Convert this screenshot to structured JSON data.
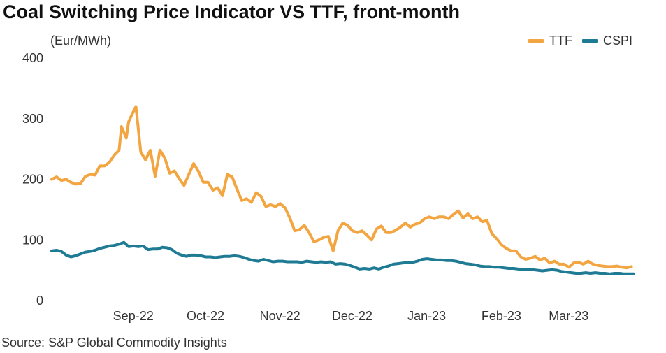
{
  "chart_data": {
    "type": "line",
    "title": "Coal Switching Price Indicator VS TTF, front-month",
    "ylabel": "(Eur/MWh)",
    "source": "Source: S&P Global Commodity Insights",
    "ylim": [
      0,
      400
    ],
    "yticks": [
      "400",
      "300",
      "200",
      "100",
      "0"
    ],
    "xlim": [
      "2022-08-01",
      "2023-03-31"
    ],
    "xticks": [
      {
        "date": "2022-09-01",
        "label": "Sep-22"
      },
      {
        "date": "2022-10-01",
        "label": "Oct-22"
      },
      {
        "date": "2022-11-01",
        "label": "Nov-22"
      },
      {
        "date": "2022-12-01",
        "label": "Dec-22"
      },
      {
        "date": "2023-01-01",
        "label": "Jan-23"
      },
      {
        "date": "2023-02-01",
        "label": "Feb-23"
      },
      {
        "date": "2023-03-01",
        "label": "Mar-23"
      }
    ],
    "grid": false,
    "legend_position": "top-right",
    "series": [
      {
        "name": "TTF",
        "color": "#F2A541",
        "points": [
          [
            "2022-08-01",
            200
          ],
          [
            "2022-08-03",
            204
          ],
          [
            "2022-08-05",
            198
          ],
          [
            "2022-08-07",
            200
          ],
          [
            "2022-08-09",
            195
          ],
          [
            "2022-08-11",
            192
          ],
          [
            "2022-08-13",
            193
          ],
          [
            "2022-08-15",
            205
          ],
          [
            "2022-08-17",
            208
          ],
          [
            "2022-08-19",
            207
          ],
          [
            "2022-08-21",
            222
          ],
          [
            "2022-08-23",
            222
          ],
          [
            "2022-08-25",
            228
          ],
          [
            "2022-08-27",
            240
          ],
          [
            "2022-08-29",
            248
          ],
          [
            "2022-08-30",
            287
          ],
          [
            "2022-09-01",
            268
          ],
          [
            "2022-09-02",
            295
          ],
          [
            "2022-09-04",
            312
          ],
          [
            "2022-09-05",
            320
          ],
          [
            "2022-09-07",
            245
          ],
          [
            "2022-09-09",
            232
          ],
          [
            "2022-09-11",
            248
          ],
          [
            "2022-09-13",
            205
          ],
          [
            "2022-09-15",
            248
          ],
          [
            "2022-09-17",
            235
          ],
          [
            "2022-09-19",
            210
          ],
          [
            "2022-09-21",
            214
          ],
          [
            "2022-09-23",
            201
          ],
          [
            "2022-09-25",
            190
          ],
          [
            "2022-09-27",
            208
          ],
          [
            "2022-09-29",
            226
          ],
          [
            "2022-10-01",
            213
          ],
          [
            "2022-10-03",
            195
          ],
          [
            "2022-10-05",
            195
          ],
          [
            "2022-10-07",
            182
          ],
          [
            "2022-10-09",
            186
          ],
          [
            "2022-10-11",
            173
          ],
          [
            "2022-10-13",
            208
          ],
          [
            "2022-10-15",
            204
          ],
          [
            "2022-10-17",
            184
          ],
          [
            "2022-10-19",
            165
          ],
          [
            "2022-10-21",
            168
          ],
          [
            "2022-10-23",
            162
          ],
          [
            "2022-10-25",
            178
          ],
          [
            "2022-10-27",
            172
          ],
          [
            "2022-10-29",
            155
          ],
          [
            "2022-10-31",
            158
          ],
          [
            "2022-11-02",
            155
          ],
          [
            "2022-11-04",
            160
          ],
          [
            "2022-11-06",
            153
          ],
          [
            "2022-11-08",
            136
          ],
          [
            "2022-11-10",
            115
          ],
          [
            "2022-11-12",
            117
          ],
          [
            "2022-11-14",
            124
          ],
          [
            "2022-11-16",
            112
          ],
          [
            "2022-11-18",
            97
          ],
          [
            "2022-11-20",
            100
          ],
          [
            "2022-11-22",
            104
          ],
          [
            "2022-11-24",
            106
          ],
          [
            "2022-11-26",
            82
          ],
          [
            "2022-11-28",
            115
          ],
          [
            "2022-11-30",
            128
          ],
          [
            "2022-12-02",
            124
          ],
          [
            "2022-12-04",
            115
          ],
          [
            "2022-12-06",
            112
          ],
          [
            "2022-12-08",
            115
          ],
          [
            "2022-12-10",
            108
          ],
          [
            "2022-12-12",
            100
          ],
          [
            "2022-12-14",
            118
          ],
          [
            "2022-12-16",
            123
          ],
          [
            "2022-12-18",
            112
          ],
          [
            "2022-12-20",
            112
          ],
          [
            "2022-12-22",
            116
          ],
          [
            "2022-12-24",
            121
          ],
          [
            "2022-12-26",
            128
          ],
          [
            "2022-12-28",
            121
          ],
          [
            "2022-12-30",
            126
          ],
          [
            "2023-01-01",
            128
          ],
          [
            "2023-01-03",
            135
          ],
          [
            "2023-01-05",
            138
          ],
          [
            "2023-01-07",
            135
          ],
          [
            "2023-01-09",
            138
          ],
          [
            "2023-01-11",
            138
          ],
          [
            "2023-01-13",
            135
          ],
          [
            "2023-01-15",
            142
          ],
          [
            "2023-01-17",
            148
          ],
          [
            "2023-01-19",
            136
          ],
          [
            "2023-01-21",
            143
          ],
          [
            "2023-01-23",
            135
          ],
          [
            "2023-01-25",
            138
          ],
          [
            "2023-01-27",
            130
          ],
          [
            "2023-01-29",
            132
          ],
          [
            "2023-01-31",
            110
          ],
          [
            "2023-02-02",
            102
          ],
          [
            "2023-02-04",
            92
          ],
          [
            "2023-02-06",
            86
          ],
          [
            "2023-02-08",
            82
          ],
          [
            "2023-02-10",
            82
          ],
          [
            "2023-02-12",
            72
          ],
          [
            "2023-02-14",
            68
          ],
          [
            "2023-02-16",
            70
          ],
          [
            "2023-02-18",
            73
          ],
          [
            "2023-02-20",
            67
          ],
          [
            "2023-02-22",
            70
          ],
          [
            "2023-02-24",
            62
          ],
          [
            "2023-02-26",
            65
          ],
          [
            "2023-02-28",
            60
          ],
          [
            "2023-03-02",
            60
          ],
          [
            "2023-03-04",
            55
          ],
          [
            "2023-03-06",
            62
          ],
          [
            "2023-03-08",
            63
          ],
          [
            "2023-03-10",
            60
          ],
          [
            "2023-03-12",
            65
          ],
          [
            "2023-03-14",
            60
          ],
          [
            "2023-03-16",
            58
          ],
          [
            "2023-03-18",
            57
          ],
          [
            "2023-03-20",
            56
          ],
          [
            "2023-03-22",
            56
          ],
          [
            "2023-03-24",
            57
          ],
          [
            "2023-03-26",
            55
          ],
          [
            "2023-03-28",
            54
          ],
          [
            "2023-03-30",
            56
          ]
        ]
      },
      {
        "name": "CSPI",
        "color": "#1F7A94",
        "points": [
          [
            "2022-08-01",
            82
          ],
          [
            "2022-08-03",
            83
          ],
          [
            "2022-08-05",
            81
          ],
          [
            "2022-08-07",
            75
          ],
          [
            "2022-08-09",
            72
          ],
          [
            "2022-08-11",
            74
          ],
          [
            "2022-08-13",
            77
          ],
          [
            "2022-08-15",
            80
          ],
          [
            "2022-08-17",
            81
          ],
          [
            "2022-08-19",
            83
          ],
          [
            "2022-08-21",
            86
          ],
          [
            "2022-08-23",
            88
          ],
          [
            "2022-08-25",
            90
          ],
          [
            "2022-08-27",
            91
          ],
          [
            "2022-08-29",
            93
          ],
          [
            "2022-08-31",
            96
          ],
          [
            "2022-09-02",
            89
          ],
          [
            "2022-09-04",
            90
          ],
          [
            "2022-09-06",
            89
          ],
          [
            "2022-09-08",
            90
          ],
          [
            "2022-09-10",
            84
          ],
          [
            "2022-09-12",
            85
          ],
          [
            "2022-09-14",
            85
          ],
          [
            "2022-09-16",
            88
          ],
          [
            "2022-09-18",
            87
          ],
          [
            "2022-09-20",
            84
          ],
          [
            "2022-09-22",
            78
          ],
          [
            "2022-09-24",
            75
          ],
          [
            "2022-09-26",
            73
          ],
          [
            "2022-09-28",
            75
          ],
          [
            "2022-09-30",
            75
          ],
          [
            "2022-10-02",
            74
          ],
          [
            "2022-10-04",
            72
          ],
          [
            "2022-10-06",
            72
          ],
          [
            "2022-10-08",
            71
          ],
          [
            "2022-10-10",
            72
          ],
          [
            "2022-10-12",
            73
          ],
          [
            "2022-10-14",
            73
          ],
          [
            "2022-10-16",
            74
          ],
          [
            "2022-10-18",
            73
          ],
          [
            "2022-10-20",
            71
          ],
          [
            "2022-10-22",
            68
          ],
          [
            "2022-10-24",
            66
          ],
          [
            "2022-10-26",
            65
          ],
          [
            "2022-10-28",
            68
          ],
          [
            "2022-10-30",
            66
          ],
          [
            "2022-11-01",
            64
          ],
          [
            "2022-11-03",
            65
          ],
          [
            "2022-11-05",
            65
          ],
          [
            "2022-11-07",
            64
          ],
          [
            "2022-11-09",
            64
          ],
          [
            "2022-11-11",
            64
          ],
          [
            "2022-11-13",
            63
          ],
          [
            "2022-11-15",
            65
          ],
          [
            "2022-11-17",
            64
          ],
          [
            "2022-11-19",
            63
          ],
          [
            "2022-11-21",
            64
          ],
          [
            "2022-11-23",
            63
          ],
          [
            "2022-11-25",
            64
          ],
          [
            "2022-11-27",
            60
          ],
          [
            "2022-11-29",
            61
          ],
          [
            "2022-12-01",
            60
          ],
          [
            "2022-12-03",
            58
          ],
          [
            "2022-12-05",
            55
          ],
          [
            "2022-12-07",
            52
          ],
          [
            "2022-12-09",
            53
          ],
          [
            "2022-12-11",
            52
          ],
          [
            "2022-12-13",
            54
          ],
          [
            "2022-12-15",
            52
          ],
          [
            "2022-12-17",
            55
          ],
          [
            "2022-12-19",
            57
          ],
          [
            "2022-12-21",
            60
          ],
          [
            "2022-12-23",
            61
          ],
          [
            "2022-12-25",
            62
          ],
          [
            "2022-12-27",
            63
          ],
          [
            "2022-12-29",
            63
          ],
          [
            "2022-12-31",
            65
          ],
          [
            "2023-01-02",
            68
          ],
          [
            "2023-01-04",
            69
          ],
          [
            "2023-01-06",
            68
          ],
          [
            "2023-01-08",
            67
          ],
          [
            "2023-01-10",
            67
          ],
          [
            "2023-01-12",
            66
          ],
          [
            "2023-01-14",
            66
          ],
          [
            "2023-01-16",
            65
          ],
          [
            "2023-01-18",
            63
          ],
          [
            "2023-01-20",
            61
          ],
          [
            "2023-01-22",
            60
          ],
          [
            "2023-01-24",
            59
          ],
          [
            "2023-01-26",
            57
          ],
          [
            "2023-01-28",
            56
          ],
          [
            "2023-01-30",
            56
          ],
          [
            "2023-02-01",
            55
          ],
          [
            "2023-02-03",
            55
          ],
          [
            "2023-02-05",
            54
          ],
          [
            "2023-02-07",
            53
          ],
          [
            "2023-02-09",
            53
          ],
          [
            "2023-02-11",
            52
          ],
          [
            "2023-02-13",
            51
          ],
          [
            "2023-02-15",
            51
          ],
          [
            "2023-02-17",
            51
          ],
          [
            "2023-02-19",
            50
          ],
          [
            "2023-02-21",
            49
          ],
          [
            "2023-02-23",
            50
          ],
          [
            "2023-02-25",
            51
          ],
          [
            "2023-02-27",
            50
          ],
          [
            "2023-03-01",
            48
          ],
          [
            "2023-03-03",
            47
          ],
          [
            "2023-03-05",
            46
          ],
          [
            "2023-03-07",
            45
          ],
          [
            "2023-03-09",
            45
          ],
          [
            "2023-03-11",
            46
          ],
          [
            "2023-03-13",
            45
          ],
          [
            "2023-03-15",
            46
          ],
          [
            "2023-03-17",
            45
          ],
          [
            "2023-03-19",
            45
          ],
          [
            "2023-03-21",
            44
          ],
          [
            "2023-03-23",
            45
          ],
          [
            "2023-03-25",
            45
          ],
          [
            "2023-03-27",
            44
          ],
          [
            "2023-03-29",
            44
          ],
          [
            "2023-03-31",
            44
          ]
        ]
      }
    ]
  }
}
